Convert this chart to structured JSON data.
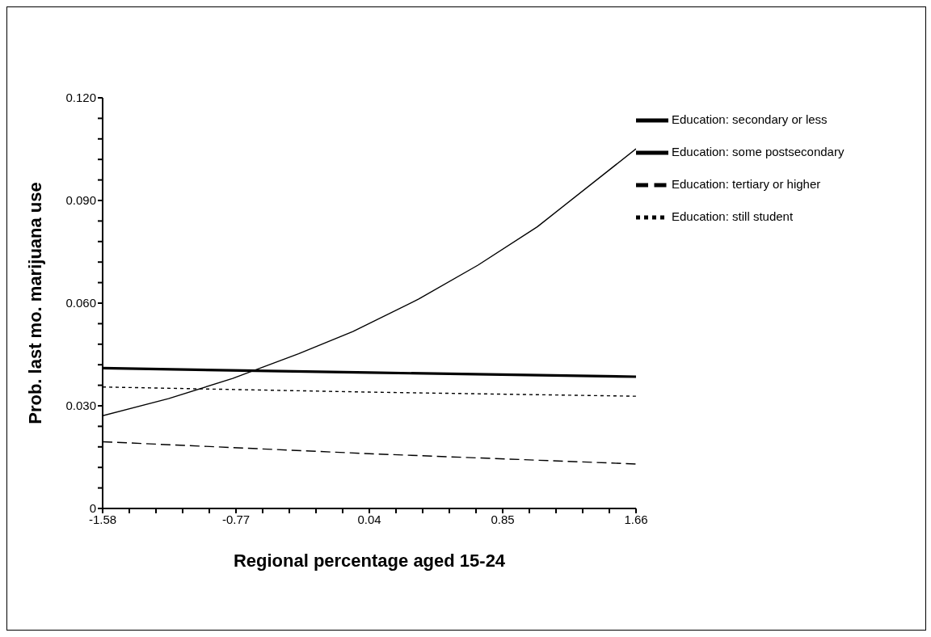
{
  "chart_data": {
    "type": "line",
    "xlabel": "Regional percentage aged 15-24",
    "ylabel": "Prob. last mo. marijuana use",
    "xlim": [
      -1.58,
      1.66
    ],
    "ylim": [
      0,
      0.12
    ],
    "xticks": [
      {
        "value": -1.58,
        "label": "-1.58"
      },
      {
        "value": -1.418,
        "label": null
      },
      {
        "value": -1.256,
        "label": null
      },
      {
        "value": -1.094,
        "label": null
      },
      {
        "value": -0.932,
        "label": null
      },
      {
        "value": -0.77,
        "label": "-0.77"
      },
      {
        "value": -0.608,
        "label": null
      },
      {
        "value": -0.446,
        "label": null
      },
      {
        "value": -0.284,
        "label": null
      },
      {
        "value": -0.122,
        "label": null
      },
      {
        "value": 0.04,
        "label": "0.04"
      },
      {
        "value": 0.202,
        "label": null
      },
      {
        "value": 0.364,
        "label": null
      },
      {
        "value": 0.526,
        "label": null
      },
      {
        "value": 0.688,
        "label": null
      },
      {
        "value": 0.85,
        "label": "0.85"
      },
      {
        "value": 1.012,
        "label": null
      },
      {
        "value": 1.174,
        "label": null
      },
      {
        "value": 1.336,
        "label": null
      },
      {
        "value": 1.498,
        "label": null
      },
      {
        "value": 1.66,
        "label": "1.66"
      }
    ],
    "yticks": [
      0,
      {
        "value": 0.006,
        "label": null
      },
      {
        "value": 0.012,
        "label": null
      },
      {
        "value": 0.018,
        "label": null
      },
      {
        "value": 0.024,
        "label": null
      },
      {
        "value": 0.03,
        "label": "0.030"
      },
      {
        "value": 0.036,
        "label": null
      },
      {
        "value": 0.042,
        "label": null
      },
      {
        "value": 0.048,
        "label": null
      },
      {
        "value": 0.054,
        "label": null
      },
      {
        "value": 0.06,
        "label": "0.060"
      },
      {
        "value": 0.066,
        "label": null
      },
      {
        "value": 0.072,
        "label": null
      },
      {
        "value": 0.078,
        "label": null
      },
      {
        "value": 0.084,
        "label": null
      },
      {
        "value": 0.09,
        "label": "0.090"
      },
      {
        "value": 0.096,
        "label": null
      },
      {
        "value": 0.102,
        "label": null
      },
      {
        "value": 0.108,
        "label": null
      },
      {
        "value": 0.114,
        "label": null
      },
      {
        "value": 0.12,
        "label": "0.120"
      }
    ],
    "grid": false,
    "legend": "top right",
    "marker": "none",
    "series": [
      {
        "name": "Education: secondary or less",
        "color": "#000000",
        "line_style": "solid",
        "x": [
          -1.58,
          -1.18,
          -0.79,
          -0.39,
          -0.06,
          0.34,
          0.7,
          1.06,
          1.66
        ],
        "values": [
          0.0271,
          0.0321,
          0.038,
          0.0452,
          0.0517,
          0.0612,
          0.0711,
          0.0823,
          0.1051
        ]
      },
      {
        "name": "Education: some postsecondary",
        "color": "#000000",
        "line_style": "solid",
        "x": [
          -1.58,
          0.04,
          1.66
        ],
        "values": [
          0.041,
          0.0397,
          0.0385
        ]
      },
      {
        "name": "Education: tertiary or higher",
        "color": "#000000",
        "line_style": "dashed",
        "x": [
          -1.58,
          0.04,
          1.66
        ],
        "values": [
          0.0195,
          0.016,
          0.013
        ]
      },
      {
        "name": "Education: still student",
        "color": "#000000",
        "line_style": "dotted",
        "x": [
          -1.58,
          0.04,
          1.66
        ],
        "values": [
          0.0355,
          0.034,
          0.0328
        ]
      }
    ]
  }
}
